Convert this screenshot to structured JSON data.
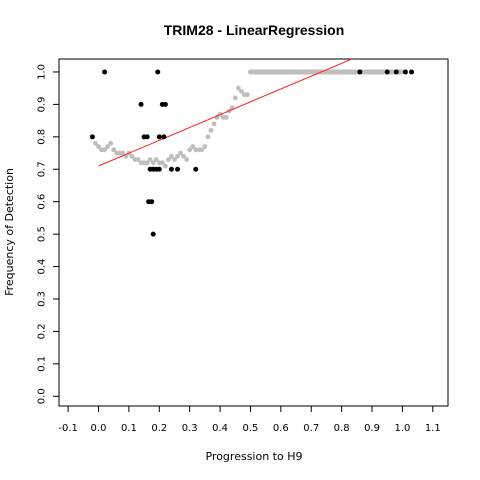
{
  "chart_data": {
    "type": "scatter",
    "title": "TRIM28 - LinearRegression",
    "xlabel": "Progression to H9",
    "ylabel": "Frequency of Detection",
    "xlim": [
      -0.13,
      1.15
    ],
    "ylim": [
      -0.03,
      1.04
    ],
    "x_ticks": [
      "-0.1",
      "0.0",
      "0.1",
      "0.2",
      "0.3",
      "0.4",
      "0.5",
      "0.6",
      "0.7",
      "0.8",
      "0.9",
      "1.0",
      "1.1"
    ],
    "x_tick_values": [
      -0.1,
      0.0,
      0.1,
      0.2,
      0.3,
      0.4,
      0.5,
      0.6,
      0.7,
      0.8,
      0.9,
      1.0,
      1.1
    ],
    "y_ticks": [
      "0.0",
      "0.1",
      "0.2",
      "0.3",
      "0.4",
      "0.5",
      "0.6",
      "0.7",
      "0.8",
      "0.9",
      "1.0"
    ],
    "y_tick_values": [
      0.0,
      0.1,
      0.2,
      0.3,
      0.4,
      0.5,
      0.6,
      0.7,
      0.8,
      0.9,
      1.0
    ],
    "grid": false,
    "colors": {
      "observed": "#000000",
      "smoothed": "#bebebe",
      "regression": "#ff2020"
    },
    "series": [
      {
        "kind": "observed-points",
        "x": [
          -0.02,
          0.02,
          0.14,
          0.15,
          0.16,
          0.165,
          0.17,
          0.175,
          0.18,
          0.18,
          0.19,
          0.195,
          0.2,
          0.2,
          0.21,
          0.215,
          0.22,
          0.24,
          0.26,
          0.32,
          0.86,
          0.95,
          0.98,
          1.01,
          1.03
        ],
        "y": [
          0.8,
          1.0,
          0.9,
          0.8,
          0.8,
          0.6,
          0.7,
          0.6,
          0.5,
          0.7,
          0.7,
          1.0,
          0.8,
          0.7,
          0.9,
          0.8,
          0.9,
          0.7,
          0.7,
          0.7,
          1.0,
          1.0,
          1.0,
          1.0,
          1.0
        ]
      },
      {
        "kind": "smoothed-curve",
        "x": [
          -0.01,
          0.0,
          0.01,
          0.02,
          0.03,
          0.04,
          0.05,
          0.06,
          0.07,
          0.08,
          0.09,
          0.1,
          0.11,
          0.12,
          0.13,
          0.14,
          0.15,
          0.16,
          0.17,
          0.18,
          0.19,
          0.2,
          0.21,
          0.22,
          0.23,
          0.24,
          0.25,
          0.26,
          0.27,
          0.28,
          0.29,
          0.3,
          0.31,
          0.32,
          0.33,
          0.34,
          0.35,
          0.36,
          0.37,
          0.38,
          0.39,
          0.4,
          0.41,
          0.42,
          0.43,
          0.44,
          0.45,
          0.46,
          0.47,
          0.48,
          0.49
        ],
        "y": [
          0.78,
          0.77,
          0.76,
          0.76,
          0.77,
          0.78,
          0.76,
          0.75,
          0.75,
          0.75,
          0.74,
          0.75,
          0.74,
          0.73,
          0.73,
          0.72,
          0.72,
          0.72,
          0.73,
          0.72,
          0.73,
          0.72,
          0.72,
          0.71,
          0.73,
          0.74,
          0.73,
          0.74,
          0.75,
          0.74,
          0.73,
          0.76,
          0.77,
          0.76,
          0.76,
          0.76,
          0.77,
          0.8,
          0.82,
          0.84,
          0.86,
          0.87,
          0.86,
          0.86,
          0.88,
          0.89,
          0.92,
          0.95,
          0.94,
          0.93,
          0.93
        ]
      },
      {
        "kind": "smoothed-plateau",
        "x": [
          0.5,
          0.55,
          0.6,
          0.65,
          0.7,
          0.75,
          0.8,
          0.85,
          0.9,
          0.95,
          1.0
        ],
        "y": [
          1.0,
          1.0,
          1.0,
          1.0,
          1.0,
          1.0,
          1.0,
          1.0,
          1.0,
          1.0,
          1.0
        ]
      },
      {
        "kind": "regression-line",
        "x": [
          0.0,
          0.96
        ],
        "y": [
          0.71,
          1.09
        ]
      }
    ]
  }
}
